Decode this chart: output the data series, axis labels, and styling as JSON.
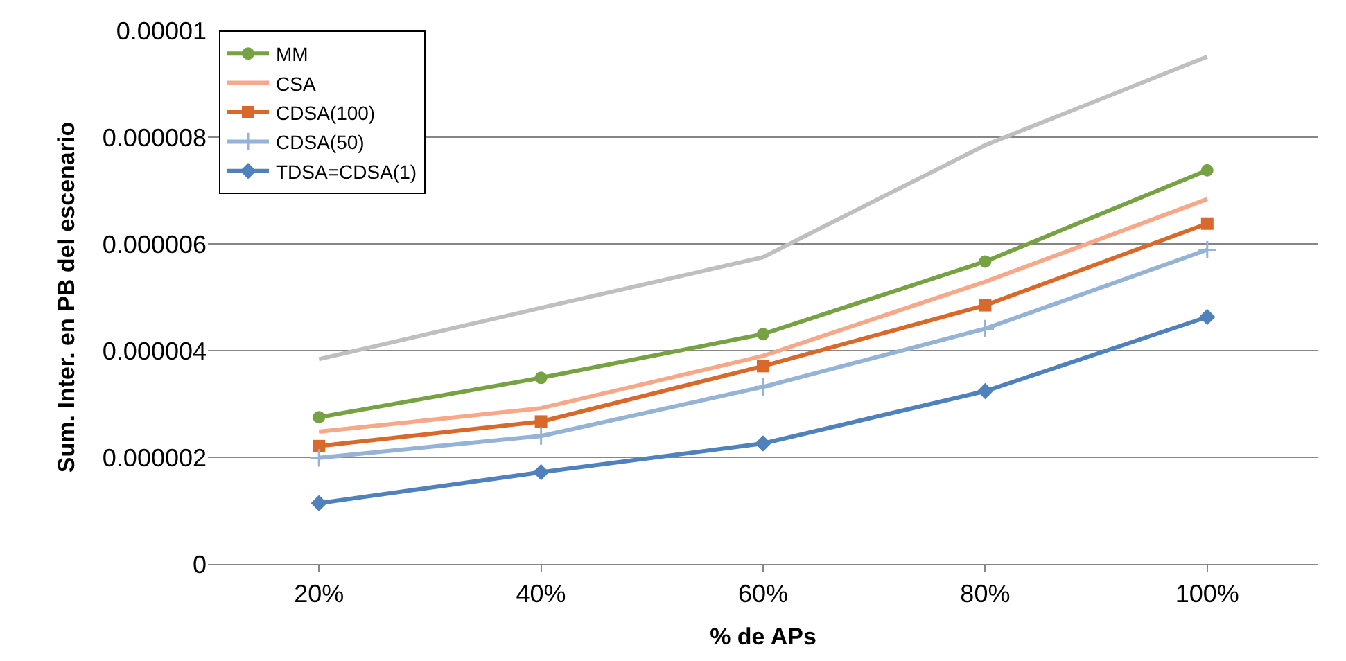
{
  "chart_data": {
    "type": "line",
    "xlabel": "% de APs",
    "ylabel": "Sum. Inter. en PB del escenario",
    "categories": [
      "20%",
      "40%",
      "60%",
      "80%",
      "100%"
    ],
    "series": [
      {
        "color": "#bfbfbf",
        "marker": "none",
        "values": [
          3.84e-06,
          4.8e-06,
          5.75e-06,
          7.85e-06,
          9.51e-06
        ]
      },
      {
        "name": "MM",
        "color": "#77a243",
        "marker": "circle",
        "values": [
          2.75e-06,
          3.49e-06,
          4.31e-06,
          5.67e-06,
          7.38e-06
        ]
      },
      {
        "name": "CSA",
        "color": "#f6a889",
        "marker": "none",
        "values": [
          2.48e-06,
          2.92e-06,
          3.9e-06,
          5.29e-06,
          6.84e-06
        ]
      },
      {
        "name": "CDSA(100)",
        "color": "#d9692b",
        "marker": "square",
        "values": [
          2.21e-06,
          2.67e-06,
          3.71e-06,
          4.85e-06,
          6.38e-06
        ]
      },
      {
        "name": "CDSA(50)",
        "color": "#95b3d7",
        "marker": "cross",
        "values": [
          1.99e-06,
          2.4e-06,
          3.32e-06,
          4.41e-06,
          5.89e-06
        ]
      },
      {
        "name": "TDSA=CDSA(1)",
        "color": "#4f81bd",
        "marker": "diamond",
        "values": [
          1.14e-06,
          1.72e-06,
          2.26e-06,
          3.24e-06,
          4.63e-06
        ]
      }
    ],
    "ylim": [
      0,
      1e-05
    ],
    "yticks": [
      0,
      {
        "value": 2e-06,
        "label": "0.000002"
      },
      {
        "value": 4e-06,
        "label": "0.000004"
      },
      {
        "value": 6e-06,
        "label": "0.000006"
      },
      {
        "value": 8e-06,
        "label": "0.000008"
      },
      {
        "value": 1e-05,
        "label": "0.00001"
      }
    ],
    "grid": "y",
    "legend": "top left",
    "line_style": "solid"
  }
}
